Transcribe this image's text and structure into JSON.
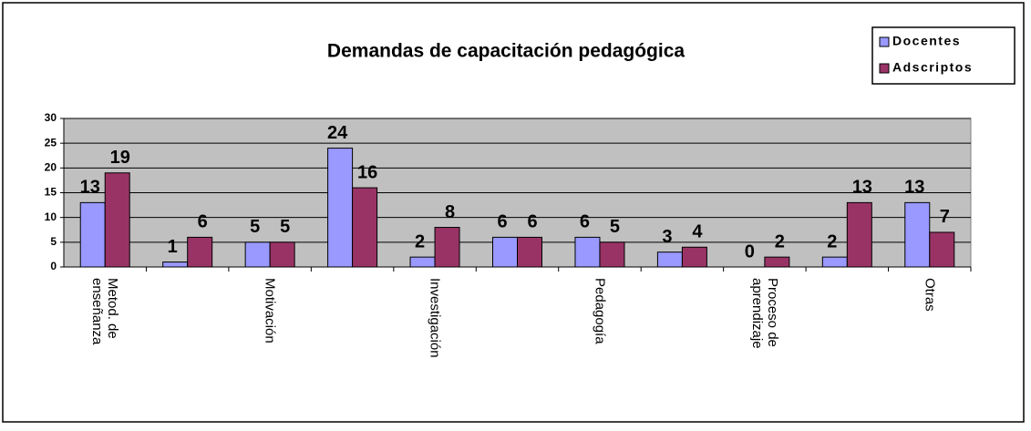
{
  "chart_data": {
    "type": "bar",
    "title": "Demandas de capacitación pedagógica",
    "categories": [
      "Metod. de enseñanza",
      null,
      "Motivación",
      null,
      "Investigación",
      null,
      "Pedagogía",
      null,
      "Proceso de aprendizaje",
      null,
      "Otras"
    ],
    "series": [
      {
        "name": "Docentes",
        "color": "#9999ff",
        "values": [
          13,
          1,
          5,
          24,
          2,
          6,
          6,
          3,
          0,
          2,
          13
        ]
      },
      {
        "name": "Adscriptos",
        "color": "#993366",
        "values": [
          19,
          6,
          5,
          16,
          8,
          6,
          5,
          4,
          2,
          13,
          7
        ]
      }
    ],
    "ylim": [
      0,
      30
    ],
    "yticks": [
      0,
      5,
      10,
      15,
      20,
      25,
      30
    ],
    "grid": true,
    "legend": "top-right"
  }
}
